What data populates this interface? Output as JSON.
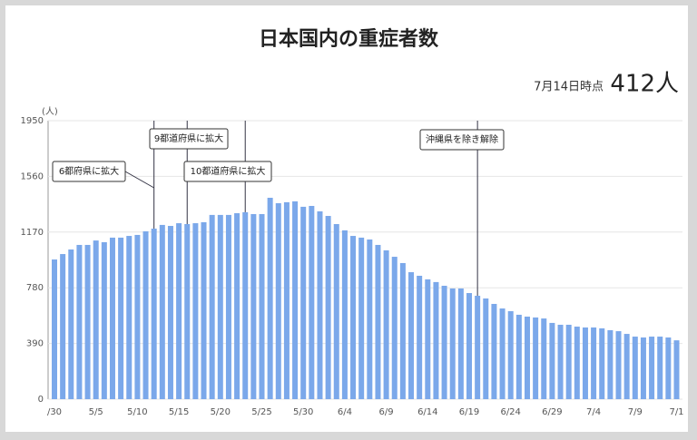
{
  "chart_data": {
    "type": "bar",
    "title": "日本国内の重症者数",
    "as_of": "7月14日時点",
    "latest": "412人",
    "y_unit": "(人)",
    "color": "#7ba8ea",
    "ylim": [
      0,
      1950
    ],
    "yticks": [
      0,
      390,
      780,
      1170,
      1560,
      1950
    ],
    "grid": true,
    "categories": [
      "/30",
      null,
      null,
      null,
      null,
      "5/5",
      null,
      null,
      null,
      null,
      "5/10",
      null,
      null,
      null,
      null,
      "5/15",
      null,
      null,
      null,
      null,
      "5/20",
      null,
      null,
      null,
      null,
      "5/25",
      null,
      null,
      null,
      null,
      "5/30",
      null,
      null,
      null,
      null,
      "6/4",
      null,
      null,
      null,
      null,
      "6/9",
      null,
      null,
      null,
      null,
      "6/14",
      null,
      null,
      null,
      null,
      "6/19",
      null,
      null,
      null,
      null,
      "6/24",
      null,
      null,
      null,
      null,
      "6/29",
      null,
      null,
      null,
      null,
      "7/4",
      null,
      null,
      null,
      null,
      "7/9",
      null,
      null,
      null,
      null,
      "7/1"
    ],
    "values": [
      978,
      1016,
      1048,
      1080,
      1080,
      1111,
      1099,
      1131,
      1131,
      1143,
      1150,
      1175,
      1194,
      1220,
      1213,
      1232,
      1226,
      1232,
      1239,
      1290,
      1290,
      1290,
      1302,
      1309,
      1296,
      1296,
      1410,
      1372,
      1379,
      1385,
      1347,
      1353,
      1315,
      1283,
      1226,
      1182,
      1143,
      1131,
      1118,
      1080,
      1042,
      997,
      953,
      889,
      864,
      839,
      820,
      794,
      775,
      775,
      743,
      724,
      705,
      667,
      635,
      616,
      591,
      578,
      572,
      565,
      534,
      521,
      521,
      508,
      502,
      502,
      496,
      483,
      476,
      457,
      438,
      432,
      438,
      438,
      432,
      412
    ],
    "annotations": [
      "6都府県に拡大",
      "9都道府県に拡大",
      "10都道府県に拡大",
      "沖縄県を除き解除"
    ]
  }
}
